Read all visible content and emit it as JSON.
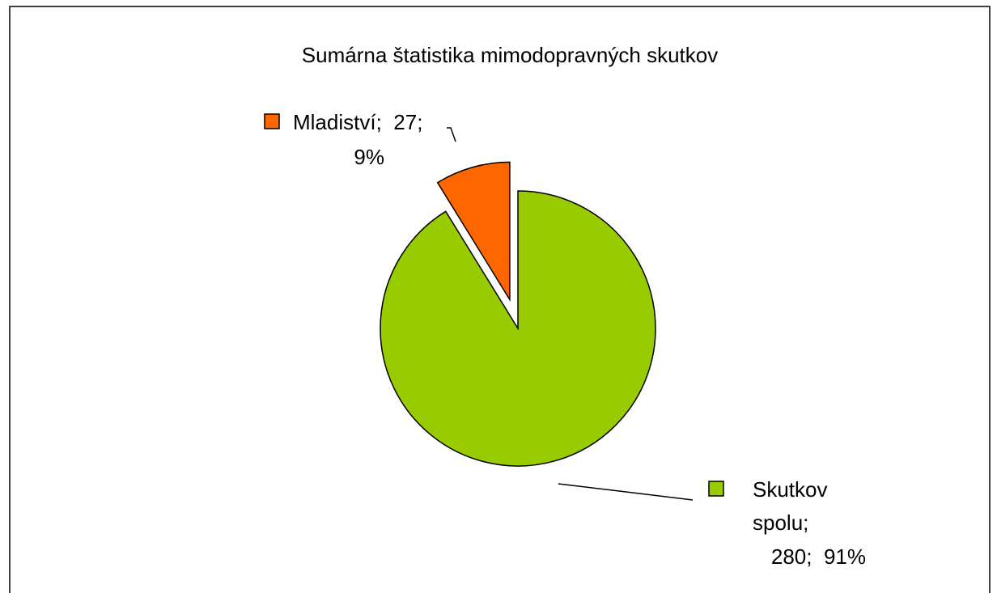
{
  "chart_data": {
    "type": "pie",
    "title": "Sumárna štatistika mimodopravných skutkov",
    "categories": [
      "Mladiství",
      "Skutkov spolu"
    ],
    "values": [
      27,
      280
    ],
    "percent_labels": [
      "9%",
      "91%"
    ],
    "separator": ";",
    "colors": [
      "#ff6600",
      "#99cc00"
    ],
    "exploded": [
      true,
      false
    ]
  }
}
